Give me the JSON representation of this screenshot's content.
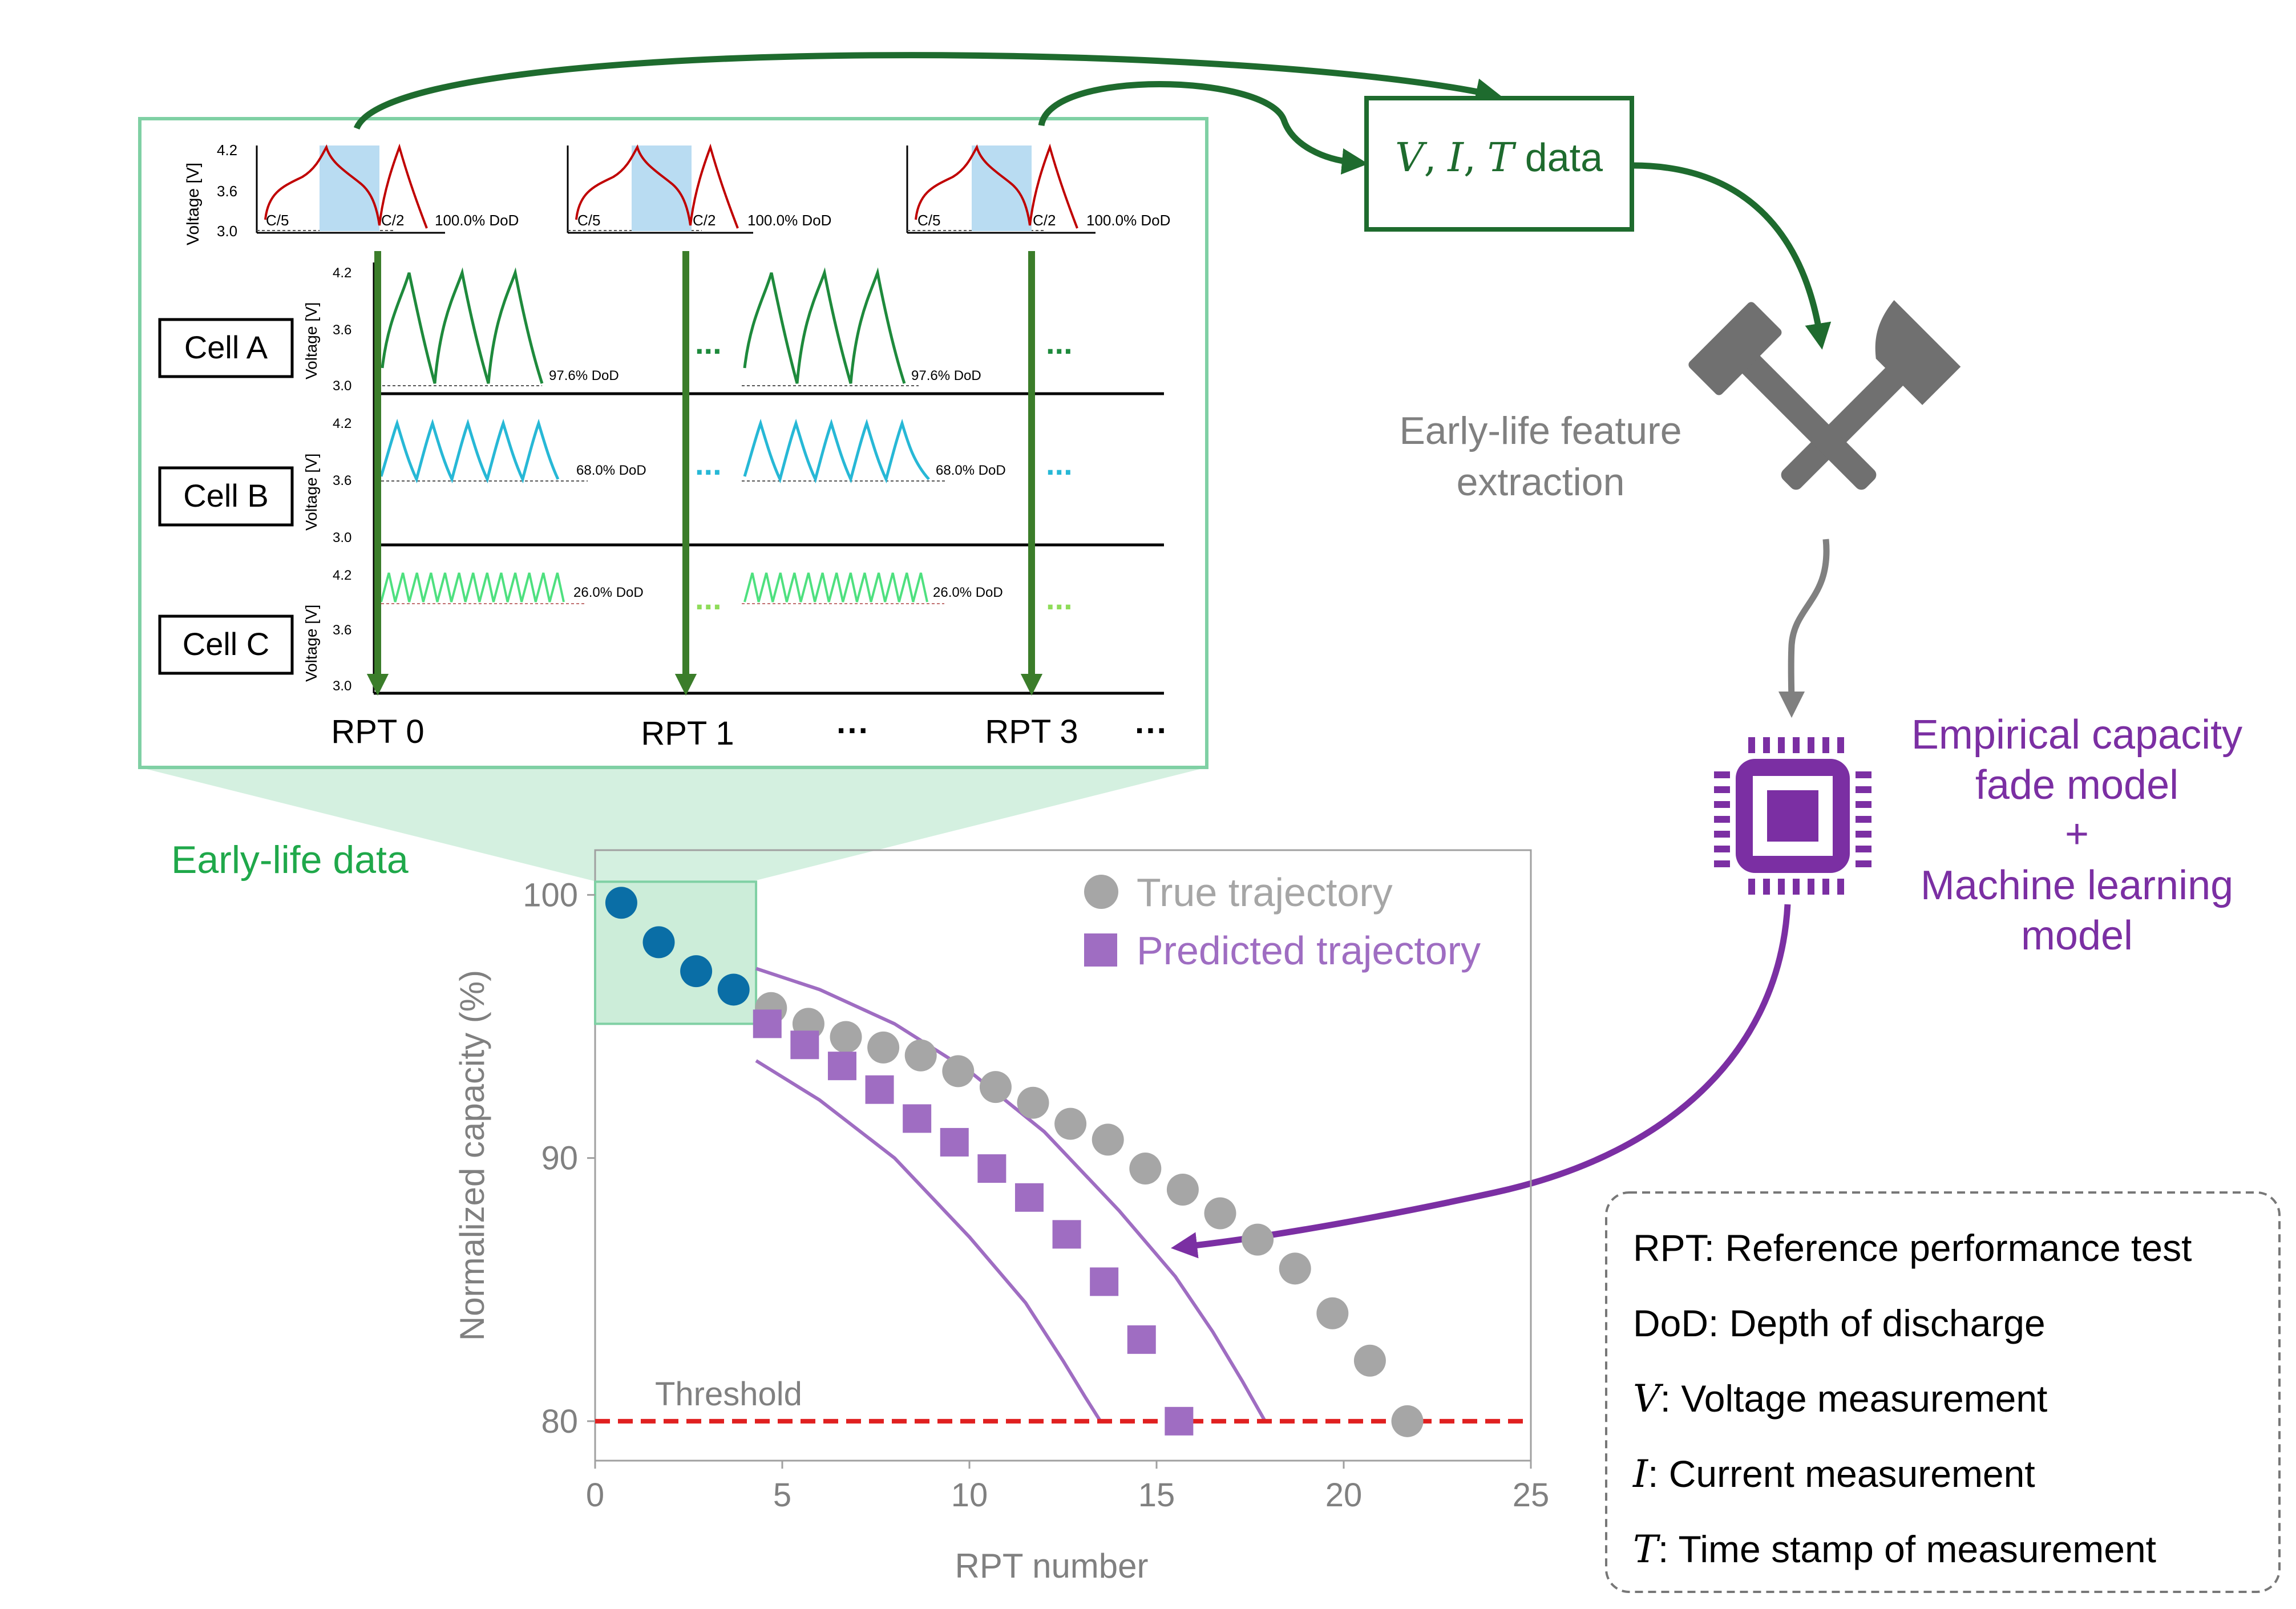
{
  "data_box": {
    "text_v": "V",
    "text_i": "I",
    "text_t": "T",
    "text_sep": ",",
    "text_data": "data"
  },
  "feature_extraction": {
    "line1": "Early-life feature",
    "line2": "extraction"
  },
  "model": {
    "line1": "Empirical capacity",
    "line2": "fade model",
    "plus": "+",
    "line3": "Machine learning",
    "line4": "model"
  },
  "early_life_label": "Early-life data",
  "rpt_panel": {
    "voltage_label": "Voltage [V]",
    "top_ticks": [
      "4.2",
      "3.6",
      "3.0"
    ],
    "cell_ticks": [
      "4.2",
      "3.6",
      "3.0"
    ],
    "rate_c5": "C/5",
    "rate_c2": "C/2",
    "rpt_dod": "100.0% DoD",
    "cells": [
      {
        "label": "Cell A",
        "dod": "97.6% DoD",
        "color": "#1e8a3c"
      },
      {
        "label": "Cell B",
        "dod": "68.0% DoD",
        "color": "#27b8d6"
      },
      {
        "label": "Cell C",
        "dod": "26.0% DoD",
        "color": "#4ee07f"
      }
    ],
    "ellipsis": "...",
    "rpt_labels": [
      "RPT 0",
      "RPT 1",
      "RPT 3"
    ],
    "rpt_dots": [
      "···",
      "···"
    ]
  },
  "legend_box": {
    "items": [
      {
        "sym": "",
        "text": "RPT: Reference performance test"
      },
      {
        "sym": "",
        "text": "DoD: Depth of discharge"
      },
      {
        "sym": "V",
        "text": ": Voltage measurement"
      },
      {
        "sym": "I",
        "text": ": Current measurement"
      },
      {
        "sym": "T",
        "text": ": Time stamp of measurement"
      }
    ]
  },
  "colors": {
    "green_dark": "#1e6b2e",
    "green_light": "#7fd0a4",
    "gray": "#808080",
    "purple": "#7b2fa3",
    "red": "#e02020"
  },
  "chart_data": {
    "type": "scatter",
    "xlabel": "RPT number",
    "ylabel": "Normalized capacity (%)",
    "xlim": [
      0,
      25
    ],
    "ylim": [
      78.5,
      101.7
    ],
    "xticks": [
      0,
      5,
      10,
      15,
      20,
      25
    ],
    "yticks": [
      80,
      90,
      100
    ],
    "threshold": {
      "label": "Threshold",
      "y": 80
    },
    "legend": [
      {
        "name": "True trajectory",
        "marker": "circle",
        "color": "#a6a6a6"
      },
      {
        "name": "Predicted trajectory",
        "marker": "square",
        "color": "#9f6dc2"
      }
    ],
    "early_points": {
      "x": [
        0.7,
        1.7,
        2.7,
        3.7
      ],
      "y": [
        99.7,
        98.2,
        97.1,
        96.4
      ],
      "color": "#0a6ea6"
    },
    "true_trajectory": {
      "x": [
        4.7,
        5.7,
        6.7,
        7.7,
        8.7,
        9.7,
        10.7,
        11.7,
        12.7,
        13.7,
        14.7,
        15.7,
        16.7,
        17.7,
        18.7,
        19.7,
        20.7,
        21.7
      ],
      "y": [
        95.7,
        95.1,
        94.6,
        94.2,
        93.9,
        93.3,
        92.7,
        92.1,
        91.3,
        90.7,
        89.6,
        88.8,
        87.9,
        86.9,
        85.8,
        84.1,
        82.3,
        80.0
      ]
    },
    "predicted_trajectory": {
      "x": [
        4.6,
        5.6,
        6.6,
        7.6,
        8.6,
        9.6,
        10.6,
        11.6,
        12.6,
        13.6,
        14.6,
        15.6
      ],
      "y": [
        95.1,
        94.3,
        93.5,
        92.6,
        91.5,
        90.6,
        89.6,
        88.5,
        87.1,
        85.3,
        83.1,
        80.0
      ]
    },
    "upper_bound": {
      "x": [
        4.3,
        6.0,
        8.0,
        10.0,
        12.0,
        14.0,
        15.5,
        16.5,
        17.3,
        17.9
      ],
      "y": [
        97.2,
        96.4,
        95.1,
        93.3,
        91.0,
        88.0,
        85.5,
        83.4,
        81.5,
        80.0
      ]
    },
    "lower_bound": {
      "x": [
        4.3,
        6.0,
        8.0,
        10.0,
        11.5,
        12.5,
        13.1,
        13.5
      ],
      "y": [
        93.7,
        92.2,
        90.0,
        87.0,
        84.5,
        82.3,
        80.9,
        80.0
      ]
    },
    "early_window": {
      "x": [
        0,
        4.3
      ],
      "y": [
        95.1,
        100.5
      ]
    }
  }
}
